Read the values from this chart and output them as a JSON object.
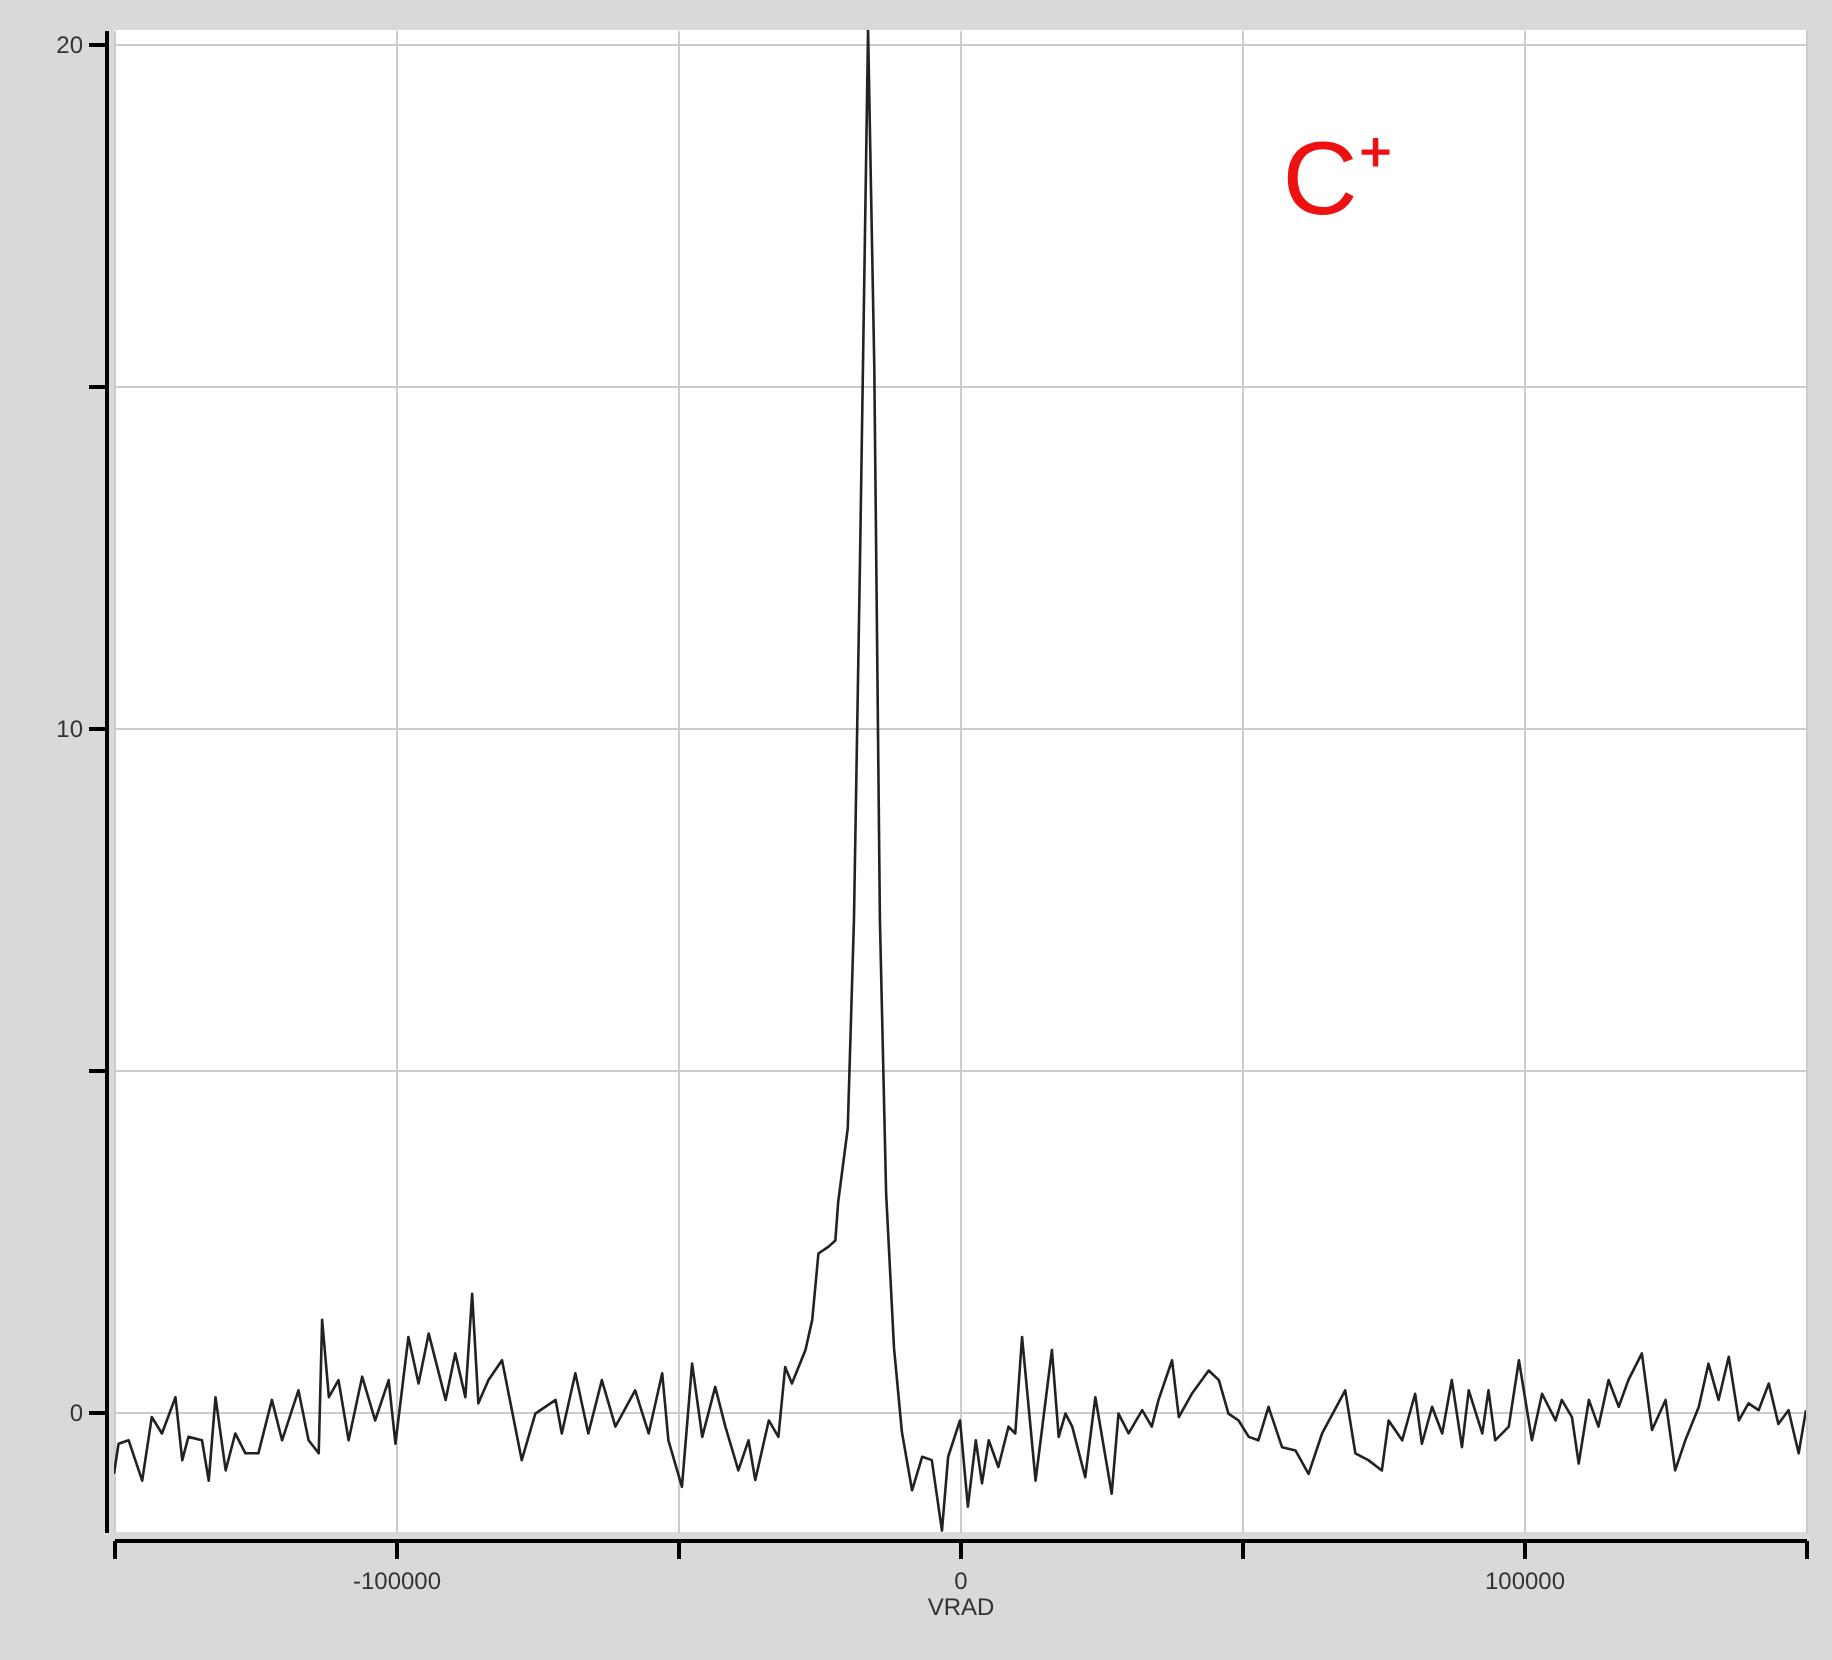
{
  "chart_data": {
    "type": "line",
    "xlabel": "VRAD",
    "annotations": [
      "C⁺"
    ],
    "xlim": [
      -150000,
      150000
    ],
    "ylim": [
      -1.75,
      20.2
    ],
    "xticks": [
      {
        "value": -150000,
        "label": null
      },
      -100000,
      {
        "value": -50000,
        "label": null
      },
      0,
      {
        "value": 50000,
        "label": null
      },
      100000,
      {
        "value": 150000,
        "label": null
      }
    ],
    "yticks": [
      0,
      {
        "value": 5,
        "label": null
      },
      10,
      {
        "value": 15,
        "label": null
      },
      20
    ],
    "grid": true,
    "marker": "none",
    "line_style": "solid",
    "series": [
      {
        "color": "#222222",
        "x": [
          -150000,
          -149200,
          -147400,
          -145000,
          -143300,
          -141500,
          -139100,
          -137900,
          -136800,
          -134400,
          -133200,
          -132000,
          -130200,
          -128500,
          -126700,
          -124400,
          -122000,
          -120200,
          -117300,
          -115500,
          -113700,
          -113100,
          -111900,
          -110200,
          -108400,
          -106000,
          -103700,
          -101300,
          -100100,
          -97800,
          -96000,
          -94200,
          -91200,
          -89500,
          -87700,
          -86500,
          -85400,
          -83600,
          -81200,
          -77700,
          -75300,
          -71700,
          -70600,
          -68200,
          -65900,
          -63500,
          -61100,
          -57600,
          -55200,
          -52800,
          -51700,
          -49300,
          -47500,
          -45700,
          -43400,
          -41600,
          -39300,
          -37500,
          -36300,
          -33900,
          -32200,
          -31000,
          -29800,
          -27400,
          -26200,
          -25100,
          -23300,
          -22100,
          -21600,
          -19900,
          -18800,
          -17700,
          -16300,
          -15200,
          -14200,
          -13100,
          -11700,
          -10300,
          -8500,
          -6700,
          -5000,
          -3200,
          -2100,
          0,
          1400,
          2800,
          3900,
          5100,
          6800,
          8600,
          9800,
          11000,
          13400,
          16300,
          17500,
          18700,
          19900,
          22200,
          24000,
          26900,
          28100,
          29900,
          32300,
          34000,
          35200,
          37600,
          38800,
          41100,
          44100,
          45900,
          47600,
          49400,
          51200,
          52900,
          54700,
          57100,
          59500,
          61800,
          64200,
          68300,
          70100,
          72400,
          74800,
          76000,
          78400,
          80700,
          81900,
          83700,
          85500,
          87200,
          89000,
          90200,
          92600,
          93700,
          94900,
          97300,
          99100,
          101400,
          103200,
          105600,
          106700,
          108500,
          109700,
          111500,
          113200,
          115000,
          116800,
          118500,
          120900,
          122700,
          125100,
          126800,
          128600,
          131000,
          132700,
          134500,
          136300,
          138100,
          139800,
          141600,
          143400,
          145100,
          146900,
          148700,
          150000
        ],
        "values": [
          -0.9,
          -0.46,
          -0.41,
          -1.0,
          -0.07,
          -0.31,
          0.22,
          -0.7,
          -0.36,
          -0.41,
          -1.0,
          0.22,
          -0.85,
          -0.31,
          -0.6,
          -0.6,
          0.18,
          -0.41,
          0.32,
          -0.41,
          -0.6,
          1.35,
          0.22,
          0.47,
          -0.41,
          0.52,
          -0.12,
          0.47,
          -0.46,
          1.1,
          0.42,
          1.15,
          0.18,
          0.86,
          0.22,
          1.73,
          0.13,
          0.47,
          0.76,
          -0.7,
          -0.02,
          0.18,
          -0.31,
          0.57,
          -0.31,
          0.47,
          -0.21,
          0.32,
          -0.31,
          0.57,
          -0.41,
          -1.09,
          0.71,
          -0.36,
          0.37,
          -0.21,
          -0.85,
          -0.41,
          -0.99,
          -0.12,
          -0.36,
          0.66,
          0.42,
          0.91,
          1.35,
          2.32,
          2.42,
          2.51,
          3.07,
          4.15,
          7.2,
          12.6,
          20.2,
          15.3,
          7.2,
          3.2,
          0.94,
          -0.29,
          -1.14,
          -0.65,
          -0.7,
          -1.73,
          -0.65,
          -0.12,
          -1.38,
          -0.41,
          -1.04,
          -0.41,
          -0.8,
          -0.21,
          -0.31,
          1.1,
          -1.0,
          0.91,
          -0.36,
          -0.02,
          -0.21,
          -0.95,
          0.22,
          -1.19,
          -0.02,
          -0.31,
          0.03,
          -0.21,
          0.18,
          0.76,
          -0.07,
          0.27,
          0.61,
          0.47,
          -0.02,
          -0.12,
          -0.36,
          -0.41,
          0.08,
          -0.51,
          -0.56,
          -0.9,
          -0.31,
          0.32,
          -0.6,
          -0.7,
          -0.85,
          -0.12,
          -0.41,
          0.27,
          -0.46,
          0.08,
          -0.31,
          0.47,
          -0.51,
          0.32,
          -0.31,
          0.32,
          -0.41,
          -0.21,
          0.76,
          -0.41,
          0.27,
          -0.12,
          0.18,
          -0.07,
          -0.75,
          0.18,
          -0.21,
          0.47,
          0.08,
          0.47,
          0.86,
          -0.26,
          0.18,
          -0.85,
          -0.41,
          0.08,
          0.71,
          0.18,
          0.81,
          -0.12,
          0.13,
          0.03,
          0.42,
          -0.17,
          0.03,
          -0.6,
          0.03
        ]
      }
    ]
  }
}
